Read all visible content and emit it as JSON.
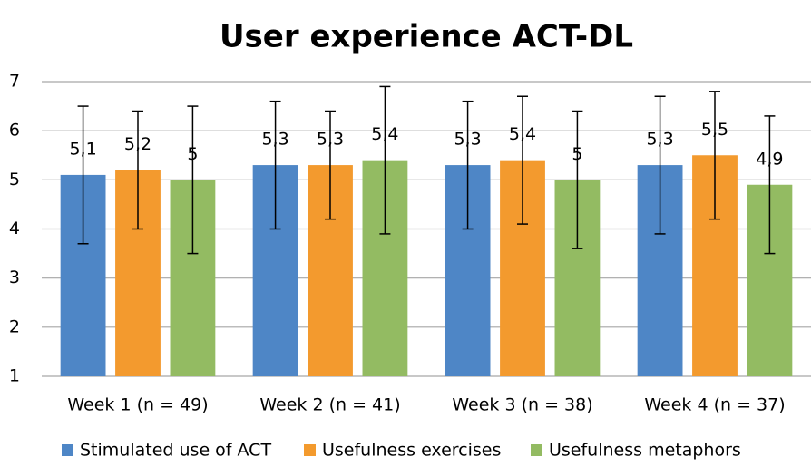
{
  "chart_data": {
    "type": "bar",
    "title": "User experience ACT-DL",
    "categories": [
      "Week 1 (n = 49)",
      "Week 2 (n = 41)",
      "Week 3 (n = 38)",
      "Week 4 (n = 37)"
    ],
    "series": [
      {
        "name": "Stimulated use of ACT",
        "color": "#4e86c6",
        "values": [
          5.1,
          5.3,
          5.3,
          5.3
        ],
        "value_labels": [
          "5,1",
          "5,3",
          "5,3",
          "5,3"
        ],
        "errors": [
          1.4,
          1.3,
          1.3,
          1.4
        ]
      },
      {
        "name": "Usefulness exercises",
        "color": "#f39a2e",
        "values": [
          5.2,
          5.3,
          5.4,
          5.5
        ],
        "value_labels": [
          "5,2",
          "5,3",
          "5,4",
          "5,5"
        ],
        "errors": [
          1.2,
          1.1,
          1.3,
          1.3
        ]
      },
      {
        "name": "Usefulness metaphors",
        "color": "#93bb62",
        "values": [
          5,
          5.4,
          5,
          4.9
        ],
        "value_labels": [
          "5",
          "5,4",
          "5",
          "4,9"
        ],
        "errors": [
          1.5,
          1.5,
          1.4,
          1.4
        ]
      }
    ],
    "ylim": [
      1,
      7
    ],
    "yticks": [
      1,
      2,
      3,
      4,
      5,
      6,
      7
    ],
    "grid": true,
    "legend": "bottom"
  }
}
